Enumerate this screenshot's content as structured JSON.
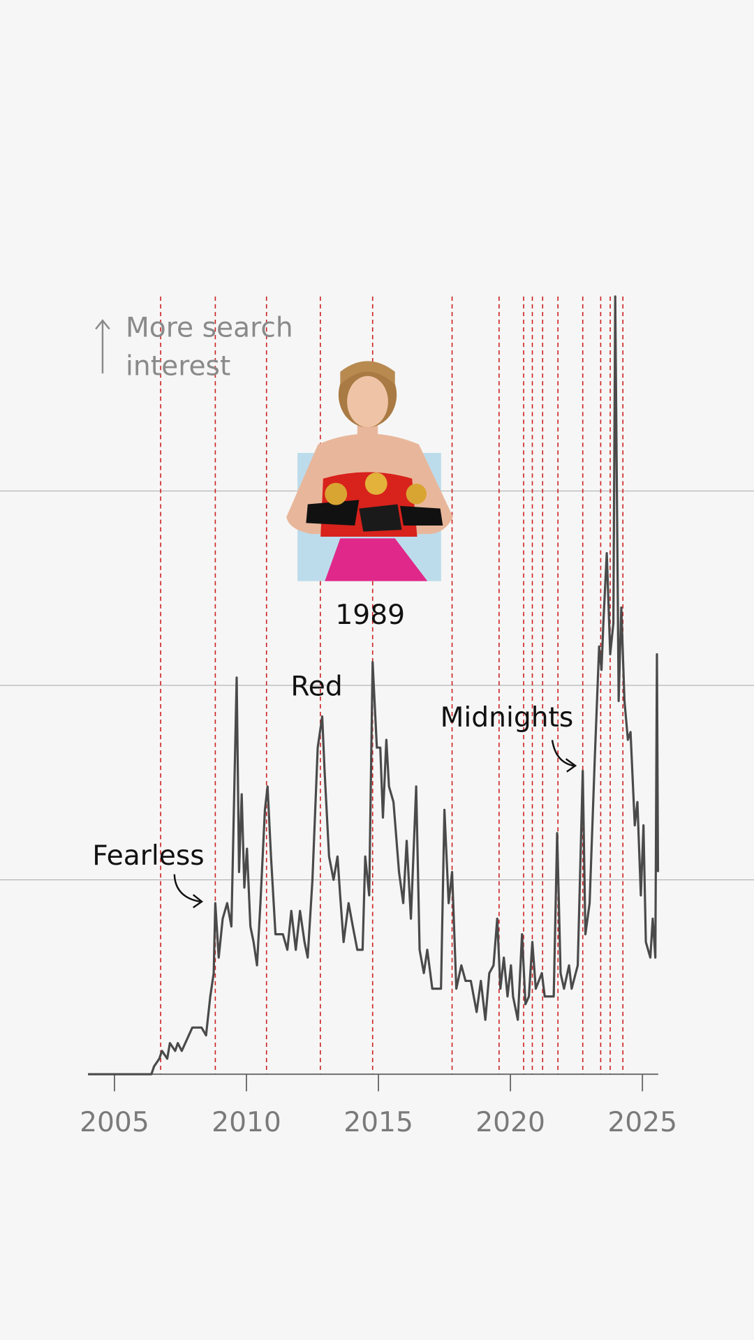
{
  "chart_data": {
    "type": "line",
    "note": "More search interest",
    "annotations": [
      "Fearless",
      "Red",
      "1989",
      "Midnights"
    ],
    "x": [
      2004,
      2006.4,
      2006.5,
      2006.7,
      2006.8,
      2007.0,
      2007.1,
      2007.3,
      2007.4,
      2007.55,
      2007.95,
      2008.3,
      2008.47,
      2008.63,
      2008.76,
      2008.82,
      2008.95,
      2009.1,
      2009.27,
      2009.43,
      2009.63,
      2009.72,
      2009.82,
      2009.92,
      2010.02,
      2010.15,
      2010.27,
      2010.4,
      2010.53,
      2010.7,
      2010.8,
      2010.93,
      2011.1,
      2011.38,
      2011.55,
      2011.7,
      2011.87,
      2012.03,
      2012.2,
      2012.32,
      2012.5,
      2012.7,
      2012.87,
      2012.96,
      2013.13,
      2013.3,
      2013.45,
      2013.55,
      2013.68,
      2013.87,
      2014.03,
      2014.2,
      2014.4,
      2014.5,
      2014.65,
      2014.78,
      2014.94,
      2015.07,
      2015.17,
      2015.3,
      2015.4,
      2015.57,
      2015.78,
      2015.94,
      2016.07,
      2016.23,
      2016.43,
      2016.56,
      2016.72,
      2016.85,
      2017.04,
      2017.37,
      2017.5,
      2017.66,
      2017.79,
      2017.95,
      2018.14,
      2018.3,
      2018.5,
      2018.72,
      2018.88,
      2019.05,
      2019.2,
      2019.36,
      2019.5,
      2019.62,
      2019.75,
      2019.89,
      2020.02,
      2020.1,
      2020.28,
      2020.44,
      2020.57,
      2020.7,
      2020.83,
      2020.96,
      2021.19,
      2021.3,
      2021.64,
      2021.77,
      2021.9,
      2022.03,
      2022.22,
      2022.32,
      2022.55,
      2022.74,
      2022.84,
      2023.0,
      2023.2,
      2023.36,
      2023.45,
      2023.52,
      2023.65,
      2023.78,
      2023.9,
      2023.97,
      2024.1,
      2024.2,
      2024.32,
      2024.45,
      2024.55,
      2024.71,
      2024.81,
      2024.94,
      2025.04,
      2025.13,
      2025.3,
      2025.39,
      2025.49,
      2025.55,
      2025.59
    ],
    "series": [
      {
        "color": "#4a4a4a",
        "values": [
          0,
          0,
          1,
          2,
          3,
          2,
          4,
          3,
          4,
          3,
          6,
          6,
          5,
          10,
          13,
          22,
          15,
          20,
          22,
          19,
          51,
          26,
          36,
          24,
          29,
          19,
          17,
          14,
          22,
          34,
          37,
          28,
          18,
          18,
          16,
          21,
          16,
          21,
          17,
          15,
          25,
          42,
          46,
          39,
          28,
          25,
          28,
          23,
          17,
          22,
          19,
          16,
          16,
          28,
          23,
          53,
          42,
          42,
          33,
          43,
          37,
          35,
          26,
          22,
          30,
          20,
          37,
          16,
          13,
          16,
          11,
          11,
          34,
          22,
          26,
          11,
          14,
          12,
          12,
          8,
          12,
          7,
          13,
          14,
          20,
          11,
          15,
          10,
          14,
          10,
          7,
          18,
          9,
          10,
          17,
          11,
          13,
          10,
          10,
          31,
          13,
          11,
          14,
          11,
          14,
          39,
          18,
          22,
          41,
          55,
          52,
          58,
          67,
          54,
          58,
          100,
          48,
          60,
          48,
          43,
          44,
          32,
          35,
          23,
          32,
          17,
          15,
          20,
          15,
          54,
          26
        ]
      }
    ],
    "release_dates": [
      2006.75,
      2008.82,
      2010.76,
      2012.8,
      2014.78,
      2017.79,
      2019.57,
      2020.5,
      2020.83,
      2021.22,
      2021.8,
      2022.74,
      2023.42,
      2023.78,
      2024.26
    ],
    "release_color": "#cc1f1f",
    "xlim": [
      2004,
      2025.6
    ],
    "xticks": [
      2005,
      2010,
      2015,
      2020,
      2025
    ],
    "ylim": [
      0,
      100
    ],
    "grid_lines": [
      25,
      50,
      75
    ]
  }
}
